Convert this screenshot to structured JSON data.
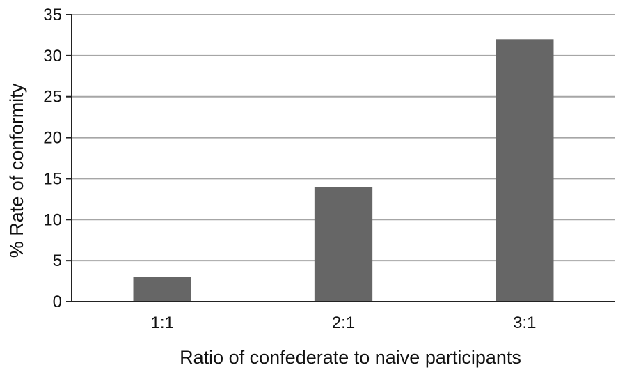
{
  "chart_data": {
    "type": "bar",
    "title": "",
    "categories": [
      "1:1",
      "2:1",
      "3:1"
    ],
    "values": [
      3,
      14,
      32
    ],
    "xlabel": "Ratio of confederate to naive participants",
    "ylabel": "% Rate of conformity",
    "ylim": [
      0,
      35
    ],
    "yticks": [
      0,
      5,
      10,
      15,
      20,
      25,
      30,
      35
    ],
    "grid": true,
    "legend": "none",
    "colors": {
      "bar": "#666666",
      "grid": "#a6a6a6",
      "axis": "#222222"
    }
  }
}
